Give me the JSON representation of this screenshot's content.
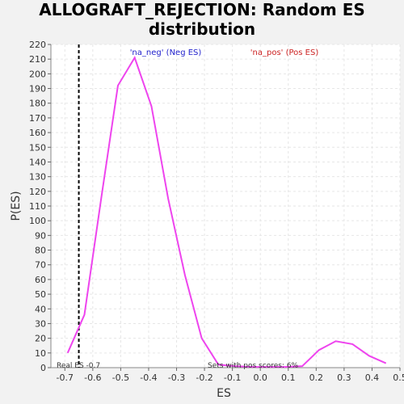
{
  "chart_data": {
    "type": "line",
    "title_lines": [
      "ALLOGRAFT_REJECTION: Random ES",
      "distribution"
    ],
    "xlabel": "ES",
    "ylabel": "P(ES)",
    "xlim": [
      -0.75,
      0.5
    ],
    "ylim": [
      0,
      220
    ],
    "x_ticks": [
      "-0.7",
      "-0.6",
      "-0.5",
      "-0.4",
      "-0.3",
      "-0.2",
      "-0.1",
      "0.0",
      "0.1",
      "0.2",
      "0.3",
      "0.4",
      "0.5"
    ],
    "y_ticks": [
      "0",
      "10",
      "20",
      "30",
      "40",
      "50",
      "60",
      "70",
      "80",
      "90",
      "100",
      "110",
      "120",
      "130",
      "140",
      "150",
      "160",
      "170",
      "180",
      "190",
      "200",
      "210",
      "220"
    ],
    "grid": true,
    "series": [
      {
        "color": "#ee44ee",
        "x": [
          -0.69,
          -0.63,
          -0.57,
          -0.51,
          -0.45,
          -0.39,
          -0.33,
          -0.27,
          -0.21,
          -0.15,
          -0.09,
          -0.03,
          0.03,
          0.09,
          0.15,
          0.21,
          0.27,
          0.33,
          0.39,
          0.45
        ],
        "y": [
          10,
          36,
          115,
          192,
          211,
          178,
          115,
          63,
          20,
          2,
          1,
          0.5,
          0.5,
          0.5,
          1,
          12,
          18,
          16,
          8,
          3
        ]
      }
    ],
    "real_es": {
      "value": -0.65,
      "label": "Real ES -0.7"
    },
    "annotations": {
      "neg": {
        "text": "'na_neg' (Neg ES)",
        "color": "#2222cc"
      },
      "pos": {
        "text": "'na_pos' (Pos ES)",
        "color": "#cc2222"
      },
      "pos_fraction": "Sets with pos scores: 6%"
    }
  }
}
